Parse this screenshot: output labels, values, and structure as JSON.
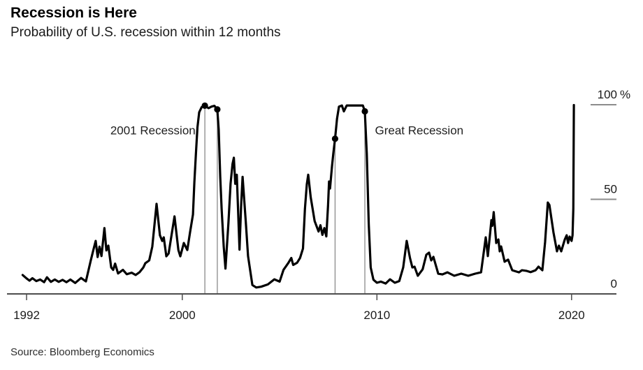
{
  "header": {
    "title": "Recession is Here",
    "subtitle": "Probability of U.S. recession within 12 months"
  },
  "source": "Source: Bloomberg Economics",
  "chart_data": {
    "type": "line",
    "title": "Recession is Here",
    "subtitle": "Probability of U.S. recession within 12 months",
    "xlabel": "",
    "ylabel": "Probability of U.S. recession within 12 months (%)",
    "x_range": [
      1991.0,
      2022.5
    ],
    "ylim": [
      0,
      100
    ],
    "grid": false,
    "legend_position": "none",
    "line_color": "#000000",
    "axis_color": "#4d4d4d",
    "tick_dash_color": "#8c8c8c",
    "boundary_line_color": "#8a8a8a",
    "text_color": "#1a1a1a",
    "x_ticks": [
      {
        "value": 1992,
        "label": "1992"
      },
      {
        "value": 2000,
        "label": "2000"
      },
      {
        "value": 2010,
        "label": "2010"
      },
      {
        "value": 2020,
        "label": "2020"
      }
    ],
    "y_ticks": [
      {
        "value": 0,
        "label": "0",
        "suffix": ""
      },
      {
        "value": 50,
        "label": "50",
        "suffix": ""
      },
      {
        "value": 100,
        "label": "100",
        "suffix": " %"
      }
    ],
    "series": [
      {
        "name": "U.S. recession probability within 12 months",
        "points": [
          [
            1991.8,
            10
          ],
          [
            1992.0,
            8.2
          ],
          [
            1992.15,
            7
          ],
          [
            1992.3,
            8.3
          ],
          [
            1992.5,
            6.8
          ],
          [
            1992.7,
            7.6
          ],
          [
            1992.9,
            6.2
          ],
          [
            1993.05,
            8.8
          ],
          [
            1993.25,
            6.4
          ],
          [
            1993.45,
            7.6
          ],
          [
            1993.65,
            6.4
          ],
          [
            1993.85,
            7.4
          ],
          [
            1994.05,
            6.2
          ],
          [
            1994.25,
            7.6
          ],
          [
            1994.5,
            5.8
          ],
          [
            1994.8,
            8.4
          ],
          [
            1995.05,
            6.6
          ],
          [
            1995.3,
            17.7
          ],
          [
            1995.45,
            24
          ],
          [
            1995.55,
            28
          ],
          [
            1995.65,
            19.5
          ],
          [
            1995.75,
            25
          ],
          [
            1995.85,
            20
          ],
          [
            1996.0,
            34.8
          ],
          [
            1996.1,
            23
          ],
          [
            1996.2,
            25.5
          ],
          [
            1996.35,
            14
          ],
          [
            1996.45,
            12.7
          ],
          [
            1996.55,
            16
          ],
          [
            1996.7,
            10.8
          ],
          [
            1996.95,
            12.7
          ],
          [
            1997.15,
            10.4
          ],
          [
            1997.4,
            11.2
          ],
          [
            1997.6,
            10
          ],
          [
            1997.8,
            11.4
          ],
          [
            1998.0,
            14
          ],
          [
            1998.1,
            16.2
          ],
          [
            1998.3,
            17.7
          ],
          [
            1998.46,
            25
          ],
          [
            1998.68,
            47.6
          ],
          [
            1998.85,
            31
          ],
          [
            1998.97,
            28
          ],
          [
            1999.05,
            29.9
          ],
          [
            1999.18,
            19.9
          ],
          [
            1999.3,
            21.4
          ],
          [
            1999.6,
            41
          ],
          [
            1999.8,
            23.2
          ],
          [
            1999.9,
            19.9
          ],
          [
            2000.08,
            26.9
          ],
          [
            2000.26,
            23.2
          ],
          [
            2000.4,
            32.5
          ],
          [
            2000.55,
            42
          ],
          [
            2000.62,
            59
          ],
          [
            2000.7,
            74
          ],
          [
            2000.78,
            88
          ],
          [
            2000.87,
            96
          ],
          [
            2001.0,
            98.8
          ],
          [
            2001.16,
            99.5
          ],
          [
            2001.35,
            98.2
          ],
          [
            2001.5,
            99
          ],
          [
            2001.65,
            99.4
          ],
          [
            2001.8,
            97.5
          ],
          [
            2001.87,
            87
          ],
          [
            2001.95,
            62
          ],
          [
            2002.02,
            45
          ],
          [
            2002.13,
            25
          ],
          [
            2002.22,
            13.4
          ],
          [
            2002.37,
            37.3
          ],
          [
            2002.48,
            58.3
          ],
          [
            2002.58,
            68.7
          ],
          [
            2002.65,
            72
          ],
          [
            2002.72,
            58.2
          ],
          [
            2002.8,
            63
          ],
          [
            2002.94,
            23.4
          ],
          [
            2003.02,
            45.9
          ],
          [
            2003.1,
            61.9
          ],
          [
            2003.26,
            38.5
          ],
          [
            2003.38,
            20
          ],
          [
            2003.6,
            4.7
          ],
          [
            2003.8,
            3.4
          ],
          [
            2004.05,
            3.8
          ],
          [
            2004.4,
            5
          ],
          [
            2004.73,
            7.7
          ],
          [
            2005.0,
            6.5
          ],
          [
            2005.2,
            12.7
          ],
          [
            2005.45,
            16.4
          ],
          [
            2005.6,
            19
          ],
          [
            2005.7,
            15.3
          ],
          [
            2005.9,
            16.5
          ],
          [
            2006.05,
            19
          ],
          [
            2006.2,
            24
          ],
          [
            2006.3,
            45
          ],
          [
            2006.4,
            58
          ],
          [
            2006.47,
            63
          ],
          [
            2006.6,
            51
          ],
          [
            2006.8,
            38.5
          ],
          [
            2007.0,
            33
          ],
          [
            2007.1,
            36.3
          ],
          [
            2007.2,
            31.2
          ],
          [
            2007.3,
            34.8
          ],
          [
            2007.4,
            30.4
          ],
          [
            2007.49,
            47
          ],
          [
            2007.54,
            59.4
          ],
          [
            2007.59,
            55.7
          ],
          [
            2007.69,
            67.4
          ],
          [
            2007.76,
            74.2
          ],
          [
            2007.85,
            82
          ],
          [
            2007.95,
            92.6
          ],
          [
            2008.05,
            99
          ],
          [
            2008.2,
            99.6
          ],
          [
            2008.3,
            96.5
          ],
          [
            2008.45,
            99.6
          ],
          [
            2008.8,
            99.6
          ],
          [
            2009.1,
            99.6
          ],
          [
            2009.28,
            99.6
          ],
          [
            2009.38,
            96.5
          ],
          [
            2009.48,
            74
          ],
          [
            2009.58,
            37
          ],
          [
            2009.68,
            14
          ],
          [
            2009.82,
            7.5
          ],
          [
            2010.0,
            5.9
          ],
          [
            2010.2,
            6.5
          ],
          [
            2010.45,
            5.5
          ],
          [
            2010.67,
            7.7
          ],
          [
            2010.92,
            5.9
          ],
          [
            2011.15,
            6.8
          ],
          [
            2011.35,
            14
          ],
          [
            2011.53,
            28
          ],
          [
            2011.7,
            19
          ],
          [
            2011.82,
            14
          ],
          [
            2011.93,
            14.4
          ],
          [
            2012.1,
            9.6
          ],
          [
            2012.35,
            13
          ],
          [
            2012.54,
            20.7
          ],
          [
            2012.68,
            21.8
          ],
          [
            2012.79,
            17.7
          ],
          [
            2012.9,
            19.6
          ],
          [
            2013.15,
            10.7
          ],
          [
            2013.36,
            10.3
          ],
          [
            2013.62,
            11.4
          ],
          [
            2013.97,
            9.6
          ],
          [
            2014.33,
            10.7
          ],
          [
            2014.69,
            9.6
          ],
          [
            2015.05,
            10.7
          ],
          [
            2015.35,
            11.4
          ],
          [
            2015.59,
            29.9
          ],
          [
            2015.7,
            20
          ],
          [
            2015.88,
            39
          ],
          [
            2015.93,
            36
          ],
          [
            2016.0,
            43.2
          ],
          [
            2016.13,
            26.9
          ],
          [
            2016.24,
            28.8
          ],
          [
            2016.31,
            22.5
          ],
          [
            2016.38,
            25.1
          ],
          [
            2016.56,
            17
          ],
          [
            2016.74,
            18.1
          ],
          [
            2016.95,
            12.5
          ],
          [
            2017.3,
            11.4
          ],
          [
            2017.45,
            12.5
          ],
          [
            2017.67,
            12.2
          ],
          [
            2017.9,
            11.5
          ],
          [
            2018.15,
            12.5
          ],
          [
            2018.3,
            14.4
          ],
          [
            2018.5,
            12.5
          ],
          [
            2018.64,
            27.3
          ],
          [
            2018.78,
            48.3
          ],
          [
            2018.86,
            47
          ],
          [
            2019.07,
            32.5
          ],
          [
            2019.25,
            22.5
          ],
          [
            2019.35,
            25.5
          ],
          [
            2019.47,
            22.5
          ],
          [
            2019.65,
            28.8
          ],
          [
            2019.75,
            31
          ],
          [
            2019.82,
            26.9
          ],
          [
            2019.9,
            30.3
          ],
          [
            2020.0,
            28
          ],
          [
            2020.05,
            31
          ],
          [
            2020.09,
            45
          ],
          [
            2020.12,
            99.8
          ]
        ]
      }
    ],
    "markers": [
      {
        "year": 2001.16,
        "value": 99.5,
        "meaning": "2001 recession start"
      },
      {
        "year": 2001.8,
        "value": 97.5,
        "meaning": "2001 recession end"
      },
      {
        "year": 2007.85,
        "value": 82,
        "meaning": "Great Recession start"
      },
      {
        "year": 2009.38,
        "value": 96.5,
        "meaning": "Great Recession end"
      }
    ],
    "annotations": [
      {
        "text": "2001 Recession",
        "year": 2000.68,
        "value": 86.5,
        "anchor": "end"
      },
      {
        "text": "Great Recession",
        "year": 2009.9,
        "value": 86.5,
        "anchor": "start"
      }
    ]
  }
}
